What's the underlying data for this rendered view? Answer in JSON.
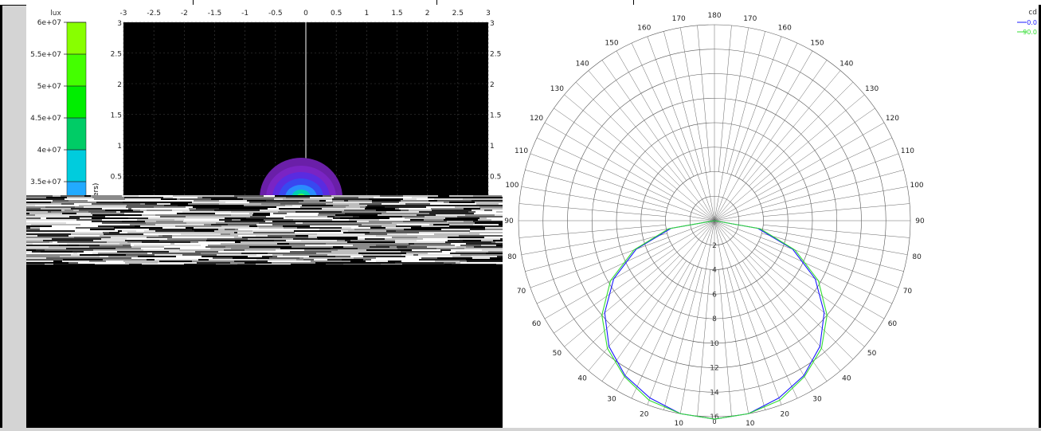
{
  "colorbar": {
    "unit": "lux",
    "ticks": [
      "6e+07",
      "5.5e+07",
      "5e+07",
      "4.5e+07",
      "4e+07",
      "3.5e+07"
    ]
  },
  "xy_plot": {
    "x_ticks": [
      "-3",
      "-2.5",
      "-2",
      "-1.5",
      "-1",
      "-0.5",
      "0",
      "0.5",
      "1",
      "1.5",
      "2",
      "2.5",
      "3"
    ],
    "y_ticks_left": [
      "3",
      "2.5",
      "2",
      "1.5",
      "1",
      "0.5"
    ],
    "y_ticks_right": [
      "3",
      "2.5",
      "2",
      "1.5",
      "1",
      "0.5"
    ],
    "axis_fragment": "ers)"
  },
  "polar": {
    "unit": "cd",
    "legend": [
      {
        "label": "0.0",
        "color": "#1a1aff"
      },
      {
        "label": "90.0",
        "color": "#33dd33"
      }
    ],
    "angle_labels_left": [
      "170",
      "160",
      "150",
      "140",
      "130",
      "120",
      "110",
      "100",
      "90",
      "80",
      "70",
      "60",
      "50",
      "40",
      "30",
      "20",
      "10"
    ],
    "angle_labels_right": [
      "170",
      "160",
      "150",
      "140",
      "130",
      "120",
      "110",
      "100",
      "90",
      "80",
      "70",
      "60",
      "50",
      "40",
      "30",
      "20",
      "10"
    ],
    "top_label": "180",
    "bottom_label": "0",
    "radial_labels": [
      "2",
      "4",
      "6",
      "8",
      "10",
      "12",
      "14",
      "16"
    ]
  },
  "chart_data": {
    "type": "polar",
    "unit": "cd",
    "radial_ticks": [
      2,
      4,
      6,
      8,
      10,
      12,
      14,
      16
    ],
    "angle_step_deg": 10,
    "series": [
      {
        "name": "0.0",
        "color": "#1a1aff",
        "angles": [
          0,
          10,
          20,
          30,
          40,
          50,
          60,
          70,
          80,
          90
        ],
        "values": [
          16.2,
          16.0,
          15.4,
          14.6,
          13.4,
          11.7,
          9.5,
          6.8,
          3.6,
          0
        ]
      },
      {
        "name": "90.0",
        "color": "#33dd33",
        "angles": [
          0,
          10,
          20,
          30,
          40,
          50,
          60,
          70,
          80,
          90
        ],
        "values": [
          16.2,
          16.0,
          15.6,
          14.7,
          13.6,
          12.0,
          9.8,
          7.0,
          3.8,
          0
        ]
      }
    ]
  }
}
